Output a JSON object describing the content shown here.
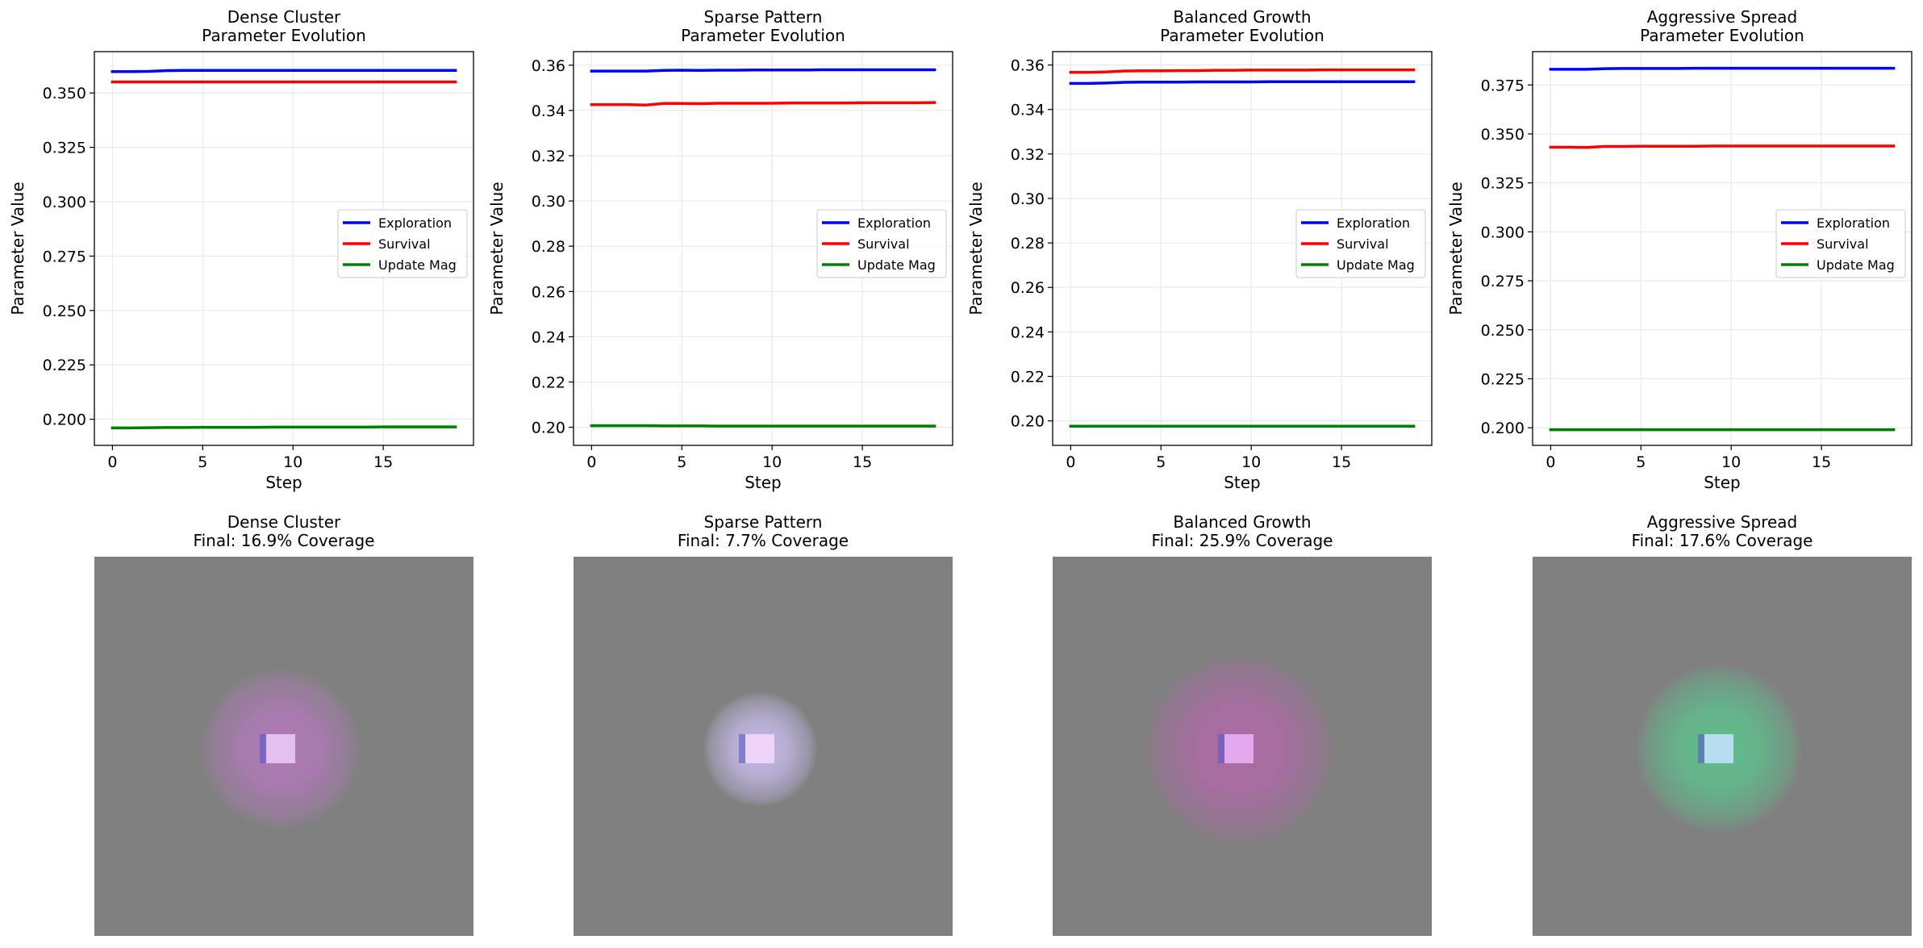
{
  "chart_data": [
    {
      "type": "line",
      "title": "Dense Cluster\nParameter Evolution",
      "title_lines": [
        "Dense Cluster",
        "Parameter Evolution"
      ],
      "xlabel": "Step",
      "ylabel": "Parameter Value",
      "xlim": [
        -1.0,
        20.0
      ],
      "ylim": [
        0.188,
        0.369
      ],
      "xticks": [
        0,
        5,
        10,
        15
      ],
      "xtick_labels": [
        "0",
        "5",
        "10",
        "15"
      ],
      "yticks": [
        0.2,
        0.225,
        0.25,
        0.275,
        0.3,
        0.325,
        0.35
      ],
      "ytick_labels": [
        "0.200",
        "0.225",
        "0.250",
        "0.275",
        "0.300",
        "0.325",
        "0.350"
      ],
      "grid": true,
      "legend_position": "center-right",
      "x": [
        0,
        1,
        2,
        3,
        4,
        5,
        6,
        7,
        8,
        9,
        10,
        11,
        12,
        13,
        14,
        15,
        16,
        17,
        18,
        19
      ],
      "series": [
        {
          "name": "Exploration",
          "color": "#0000ff",
          "values": [
            0.3598,
            0.3598,
            0.3599,
            0.3603,
            0.3604,
            0.3604,
            0.3604,
            0.3604,
            0.3604,
            0.3604,
            0.3604,
            0.3604,
            0.3604,
            0.3604,
            0.3604,
            0.3604,
            0.3604,
            0.3604,
            0.3604,
            0.3604
          ]
        },
        {
          "name": "Survival",
          "color": "#ff0000",
          "values": [
            0.3551,
            0.3551,
            0.3551,
            0.3551,
            0.3551,
            0.3551,
            0.3551,
            0.3551,
            0.3551,
            0.3551,
            0.3551,
            0.3551,
            0.3551,
            0.3551,
            0.3551,
            0.3551,
            0.3551,
            0.3551,
            0.3551,
            0.3551
          ]
        },
        {
          "name": "Update Mag",
          "color": "#008000",
          "values": [
            0.196,
            0.196,
            0.1961,
            0.1962,
            0.1962,
            0.1963,
            0.1963,
            0.1963,
            0.1963,
            0.1964,
            0.1964,
            0.1964,
            0.1964,
            0.1964,
            0.1964,
            0.1965,
            0.1965,
            0.1965,
            0.1965,
            0.1965
          ]
        }
      ]
    },
    {
      "type": "line",
      "title": "Sparse Pattern\nParameter Evolution",
      "title_lines": [
        "Sparse Pattern",
        "Parameter Evolution"
      ],
      "xlabel": "Step",
      "ylabel": "Parameter Value",
      "xlim": [
        -1.0,
        20.0
      ],
      "ylim": [
        0.192,
        0.366
      ],
      "xticks": [
        0,
        5,
        10,
        15
      ],
      "xtick_labels": [
        "0",
        "5",
        "10",
        "15"
      ],
      "yticks": [
        0.2,
        0.22,
        0.24,
        0.26,
        0.28,
        0.3,
        0.32,
        0.34,
        0.36
      ],
      "ytick_labels": [
        "0.20",
        "0.22",
        "0.24",
        "0.26",
        "0.28",
        "0.30",
        "0.32",
        "0.34",
        "0.36"
      ],
      "grid": true,
      "legend_position": "center-right",
      "x": [
        0,
        1,
        2,
        3,
        4,
        5,
        6,
        7,
        8,
        9,
        10,
        11,
        12,
        13,
        14,
        15,
        16,
        17,
        18,
        19
      ],
      "series": [
        {
          "name": "Exploration",
          "color": "#0000ff",
          "values": [
            0.3574,
            0.3574,
            0.3574,
            0.3574,
            0.3577,
            0.3578,
            0.3577,
            0.3578,
            0.3578,
            0.3579,
            0.3579,
            0.3579,
            0.3579,
            0.358,
            0.358,
            0.358,
            0.358,
            0.358,
            0.358,
            0.358
          ]
        },
        {
          "name": "Survival",
          "color": "#ff0000",
          "values": [
            0.3426,
            0.3426,
            0.3426,
            0.3424,
            0.3431,
            0.3431,
            0.343,
            0.3432,
            0.3432,
            0.3432,
            0.3432,
            0.3433,
            0.3433,
            0.3433,
            0.3433,
            0.3434,
            0.3434,
            0.3434,
            0.3434,
            0.3435
          ]
        },
        {
          "name": "Update Mag",
          "color": "#008000",
          "values": [
            0.2007,
            0.2007,
            0.2007,
            0.2007,
            0.2006,
            0.2006,
            0.2006,
            0.2005,
            0.2005,
            0.2005,
            0.2005,
            0.2005,
            0.2005,
            0.2005,
            0.2005,
            0.2005,
            0.2005,
            0.2005,
            0.2005,
            0.2005
          ]
        }
      ]
    },
    {
      "type": "line",
      "title": "Balanced Growth\nParameter Evolution",
      "title_lines": [
        "Balanced Growth",
        "Parameter Evolution"
      ],
      "xlabel": "Step",
      "ylabel": "Parameter Value",
      "xlim": [
        -1.0,
        20.0
      ],
      "ylim": [
        0.189,
        0.366
      ],
      "xticks": [
        0,
        5,
        10,
        15
      ],
      "xtick_labels": [
        "0",
        "5",
        "10",
        "15"
      ],
      "yticks": [
        0.2,
        0.22,
        0.24,
        0.26,
        0.28,
        0.3,
        0.32,
        0.34,
        0.36
      ],
      "ytick_labels": [
        "0.20",
        "0.22",
        "0.24",
        "0.26",
        "0.28",
        "0.30",
        "0.32",
        "0.34",
        "0.36"
      ],
      "grid": true,
      "legend_position": "center-right",
      "x": [
        0,
        1,
        2,
        3,
        4,
        5,
        6,
        7,
        8,
        9,
        10,
        11,
        12,
        13,
        14,
        15,
        16,
        17,
        18,
        19
      ],
      "series": [
        {
          "name": "Exploration",
          "color": "#0000ff",
          "values": [
            0.3517,
            0.3517,
            0.3519,
            0.3522,
            0.3523,
            0.3523,
            0.3523,
            0.3524,
            0.3524,
            0.3524,
            0.3524,
            0.3525,
            0.3525,
            0.3525,
            0.3525,
            0.3525,
            0.3525,
            0.3525,
            0.3525,
            0.3525
          ]
        },
        {
          "name": "Survival",
          "color": "#ff0000",
          "values": [
            0.3567,
            0.3567,
            0.3569,
            0.3573,
            0.3574,
            0.3574,
            0.3575,
            0.3575,
            0.3576,
            0.3576,
            0.3577,
            0.3577,
            0.3577,
            0.3577,
            0.3578,
            0.3578,
            0.3578,
            0.3578,
            0.3578,
            0.3578
          ]
        },
        {
          "name": "Update Mag",
          "color": "#008000",
          "values": [
            0.1976,
            0.1976,
            0.1976,
            0.1976,
            0.1976,
            0.1976,
            0.1976,
            0.1976,
            0.1976,
            0.1976,
            0.1976,
            0.1976,
            0.1976,
            0.1976,
            0.1976,
            0.1976,
            0.1976,
            0.1976,
            0.1976,
            0.1976
          ]
        }
      ]
    },
    {
      "type": "line",
      "title": "Aggressive Spread\nParameter Evolution",
      "title_lines": [
        "Aggressive Spread",
        "Parameter Evolution"
      ],
      "xlabel": "Step",
      "ylabel": "Parameter Value",
      "xlim": [
        -1.0,
        20.0
      ],
      "ylim": [
        0.191,
        0.392
      ],
      "xticks": [
        0,
        5,
        10,
        15
      ],
      "xtick_labels": [
        "0",
        "5",
        "10",
        "15"
      ],
      "yticks": [
        0.2,
        0.225,
        0.25,
        0.275,
        0.3,
        0.325,
        0.35,
        0.375
      ],
      "ytick_labels": [
        "0.200",
        "0.225",
        "0.250",
        "0.275",
        "0.300",
        "0.325",
        "0.350",
        "0.375"
      ],
      "grid": true,
      "legend_position": "center-right",
      "x": [
        0,
        1,
        2,
        3,
        4,
        5,
        6,
        7,
        8,
        9,
        10,
        11,
        12,
        13,
        14,
        15,
        16,
        17,
        18,
        19
      ],
      "series": [
        {
          "name": "Exploration",
          "color": "#0000ff",
          "values": [
            0.383,
            0.383,
            0.383,
            0.3833,
            0.3834,
            0.3834,
            0.3834,
            0.3834,
            0.3835,
            0.3835,
            0.3835,
            0.3835,
            0.3835,
            0.3835,
            0.3835,
            0.3835,
            0.3835,
            0.3835,
            0.3835,
            0.3835
          ]
        },
        {
          "name": "Survival",
          "color": "#ff0000",
          "values": [
            0.3432,
            0.3432,
            0.3431,
            0.3436,
            0.3436,
            0.3437,
            0.3437,
            0.3437,
            0.3437,
            0.3438,
            0.3438,
            0.3438,
            0.3438,
            0.3438,
            0.3438,
            0.3438,
            0.3438,
            0.3438,
            0.3438,
            0.3438
          ]
        },
        {
          "name": "Update Mag",
          "color": "#008000",
          "values": [
            0.199,
            0.199,
            0.199,
            0.199,
            0.199,
            0.199,
            0.199,
            0.199,
            0.199,
            0.199,
            0.199,
            0.199,
            0.199,
            0.199,
            0.199,
            0.199,
            0.199,
            0.199,
            0.199,
            0.199
          ]
        }
      ]
    }
  ],
  "images": [
    {
      "title": "Dense Cluster\nFinal: 16.9% Coverage",
      "title_lines": [
        "Dense Cluster",
        "Final: 16.9% Coverage"
      ],
      "coverage_percent": 16.9,
      "background": "#808080",
      "tint": "#b07ab8",
      "center_color": "#e4c0ee",
      "spread": 0.42
    },
    {
      "title": "Sparse Pattern\nFinal: 7.7% Coverage",
      "title_lines": [
        "Sparse Pattern",
        "Final: 7.7% Coverage"
      ],
      "coverage_percent": 7.7,
      "background": "#808080",
      "tint": "#c4b8e6",
      "center_color": "#efd4f8",
      "spread": 0.3
    },
    {
      "title": "Balanced Growth\nFinal: 25.9% Coverage",
      "title_lines": [
        "Balanced Growth",
        "Final: 25.9% Coverage"
      ],
      "coverage_percent": 25.9,
      "background": "#808080",
      "tint": "#ad6aa6",
      "center_color": "#e3a8ee",
      "spread": 0.5
    },
    {
      "title": "Aggressive Spread\nFinal: 17.6% Coverage",
      "title_lines": [
        "Aggressive Spread",
        "Final: 17.6% Coverage"
      ],
      "coverage_percent": 17.6,
      "background": "#808080",
      "tint": "#5fbf8c",
      "center_color": "#b8dcf0",
      "spread": 0.44
    }
  ]
}
